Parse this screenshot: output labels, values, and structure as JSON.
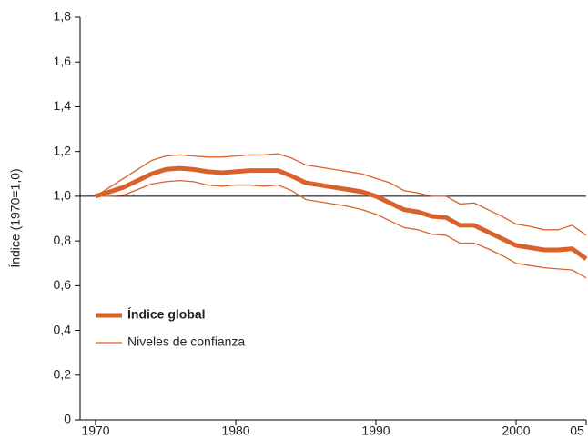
{
  "chart_data": {
    "type": "line",
    "y_label": "Índice (1970=1,0)",
    "x": [
      1970,
      1971,
      1972,
      1973,
      1974,
      1975,
      1976,
      1977,
      1978,
      1979,
      1980,
      1981,
      1982,
      1983,
      1984,
      1985,
      1986,
      1987,
      1988,
      1989,
      1990,
      1991,
      1992,
      1993,
      1994,
      1995,
      1996,
      1997,
      1998,
      1999,
      2000,
      2001,
      2002,
      2003,
      2004,
      2005
    ],
    "series": [
      {
        "name": "Índice global",
        "color": "#d9622b",
        "values": [
          1.0,
          1.02,
          1.04,
          1.07,
          1.1,
          1.12,
          1.125,
          1.12,
          1.11,
          1.105,
          1.11,
          1.115,
          1.115,
          1.115,
          1.09,
          1.06,
          1.05,
          1.04,
          1.03,
          1.02,
          1.0,
          0.97,
          0.94,
          0.93,
          0.91,
          0.905,
          0.87,
          0.87,
          0.84,
          0.81,
          0.78,
          0.77,
          0.76,
          0.76,
          0.765,
          0.72
        ]
      },
      {
        "name": "Niveles de confianza",
        "color": "#d9622b",
        "upper": [
          1.0,
          1.04,
          1.08,
          1.12,
          1.16,
          1.18,
          1.185,
          1.18,
          1.175,
          1.175,
          1.18,
          1.185,
          1.185,
          1.19,
          1.17,
          1.14,
          1.13,
          1.12,
          1.11,
          1.1,
          1.08,
          1.06,
          1.025,
          1.015,
          1.0,
          1.0,
          0.965,
          0.97,
          0.94,
          0.91,
          0.875,
          0.865,
          0.85,
          0.85,
          0.87,
          0.825
        ],
        "lower": [
          1.0,
          1.0,
          1.005,
          1.03,
          1.055,
          1.065,
          1.07,
          1.065,
          1.05,
          1.045,
          1.05,
          1.05,
          1.045,
          1.05,
          1.025,
          0.985,
          0.975,
          0.965,
          0.955,
          0.94,
          0.92,
          0.89,
          0.86,
          0.85,
          0.83,
          0.825,
          0.79,
          0.79,
          0.765,
          0.735,
          0.7,
          0.69,
          0.68,
          0.675,
          0.67,
          0.635
        ]
      }
    ],
    "reference_line": 1.0,
    "xlim": [
      1970,
      2005
    ],
    "xticks": [
      1970,
      1980,
      1990,
      2000,
      {
        "value": 2005,
        "label": "05"
      }
    ],
    "ylim": [
      0,
      1.8
    ],
    "yticks": [
      0,
      {
        "value": 0.2,
        "label": "0,2"
      },
      {
        "value": 0.4,
        "label": "0,4"
      },
      {
        "value": 0.6,
        "label": "0,6"
      },
      {
        "value": 0.8,
        "label": "0,8"
      },
      {
        "value": 1.0,
        "label": "1,0"
      },
      {
        "value": 1.2,
        "label": "1,2"
      },
      {
        "value": 1.4,
        "label": "1,4"
      },
      {
        "value": 1.6,
        "label": "1,6"
      },
      {
        "value": 1.8,
        "label": "1,8"
      }
    ],
    "grid": false,
    "legend": "lower left"
  }
}
